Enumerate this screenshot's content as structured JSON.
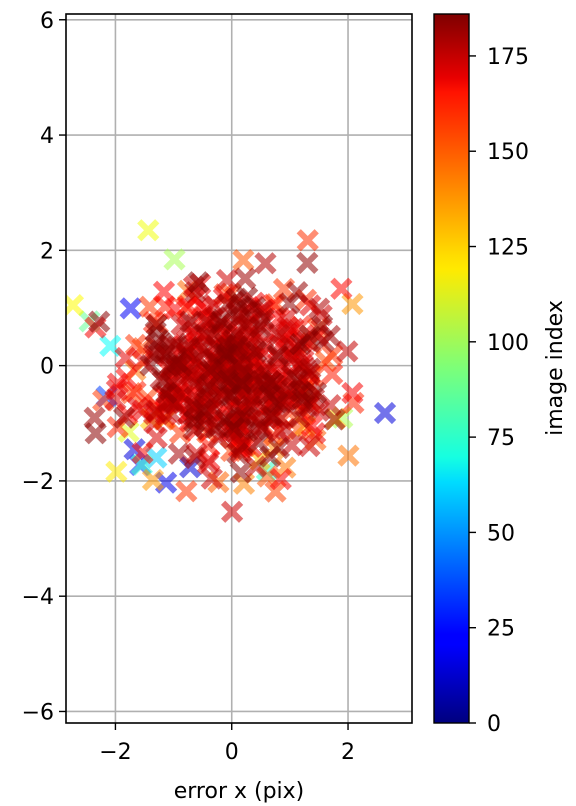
{
  "chart_data": {
    "type": "scatter",
    "marker": "X",
    "xlabel": "error x (pix)",
    "ylabel": "",
    "xlim": [
      -2.85,
      3.1
    ],
    "ylim": [
      -6.2,
      6.1
    ],
    "x_ticks": [
      -2,
      0,
      2
    ],
    "y_ticks": [
      -6,
      -4,
      -2,
      0,
      2,
      4,
      6
    ],
    "grid": true,
    "colorbar": {
      "label": "image index",
      "colormap": "jet",
      "min": 0,
      "max": 186,
      "ticks": [
        0,
        25,
        50,
        75,
        100,
        125,
        150,
        175
      ]
    },
    "point_cloud": {
      "count": 520,
      "center_x": 0.0,
      "center_y": -0.2,
      "spread_x": 0.95,
      "spread_y": 0.85,
      "seed": 12345
    }
  }
}
